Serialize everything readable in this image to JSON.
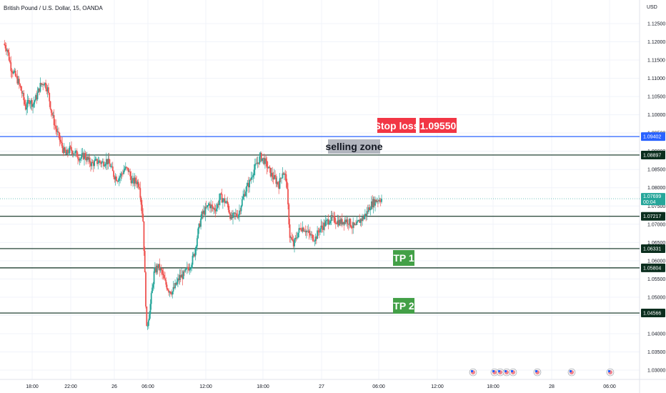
{
  "chart_data": {
    "type": "candlestick",
    "title": "British Pound / U.S. Dollar, 15, OANDA",
    "currency": "USD",
    "y_ticks": [
      "1.12500",
      "1.12000",
      "1.11500",
      "1.11000",
      "1.10500",
      "1.10000",
      "1.09500",
      "1.09000",
      "1.08500",
      "1.08000",
      "1.07500",
      "1.07000",
      "1.06500",
      "1.06000",
      "1.05500",
      "1.05000",
      "1.04500",
      "1.04000",
      "1.03500",
      "1.03000"
    ],
    "y_tick_values": [
      1.125,
      1.12,
      1.115,
      1.11,
      1.105,
      1.1,
      1.095,
      1.09,
      1.085,
      1.08,
      1.075,
      1.07,
      1.065,
      1.06,
      1.055,
      1.05,
      1.045,
      1.04,
      1.035,
      1.03
    ],
    "x_ticks": [
      "18:00",
      "22:00",
      "26",
      "06:00",
      "12:00",
      "18:00",
      "27",
      "06:00",
      "12:00",
      "18:00",
      "28",
      "06:00"
    ],
    "horizontal_levels": [
      {
        "value": 1.09402,
        "label": "1.09402",
        "color": "#2962ff"
      },
      {
        "value": 1.08897,
        "label": "1.08897",
        "color": "#0b2e1e"
      },
      {
        "value": 1.07217,
        "label": "1.07217",
        "color": "#0b2e1e"
      },
      {
        "value": 1.06331,
        "label": "1.06331",
        "color": "#0b2e1e"
      },
      {
        "value": 1.05804,
        "label": "1.05804",
        "color": "#0b2e1e"
      },
      {
        "value": 1.04566,
        "label": "1.04566",
        "color": "#0b2e1e"
      }
    ],
    "current_price": {
      "value": 1.07699,
      "label": "1.07699",
      "countdown": "00:04",
      "color": "#26a69a"
    },
    "annotations": [
      {
        "text": "Stop loss",
        "color": "#f23645"
      },
      {
        "text": "1.09550",
        "color": "#f23645"
      },
      {
        "text": "selling zone",
        "color": "#b2b5be"
      },
      {
        "text": "TP 1",
        "color": "#43a047"
      },
      {
        "text": "TP 2",
        "color": "#43a047"
      }
    ],
    "close_path": [
      1.1195,
      1.118,
      1.113,
      1.111,
      1.109,
      1.106,
      1.102,
      1.104,
      1.103,
      1.105,
      1.108,
      1.109,
      1.107,
      1.101,
      1.097,
      1.094,
      1.091,
      1.089,
      1.0905,
      1.09,
      1.089,
      1.088,
      1.089,
      1.0875,
      1.0865,
      1.087,
      1.0872,
      1.0868,
      1.0875,
      1.0862,
      1.0835,
      1.0825,
      1.0835,
      1.0852,
      1.0848,
      1.0815,
      1.082,
      1.0808,
      1.071,
      1.041,
      1.048,
      1.0565,
      1.0585,
      1.057,
      1.054,
      1.052,
      1.0515,
      1.0535,
      1.0555,
      1.056,
      1.0575,
      1.059,
      1.062,
      1.068,
      1.0725,
      1.0738,
      1.0755,
      1.0742,
      1.0745,
      1.0775,
      1.0765,
      1.0755,
      1.0715,
      1.0725,
      1.0728,
      1.0765,
      1.0795,
      1.0815,
      1.0845,
      1.0865,
      1.0885,
      1.0875,
      1.0855,
      1.0835,
      1.0822,
      1.0808,
      1.0845,
      1.0825,
      1.0668,
      1.0642,
      1.0672,
      1.0692,
      1.0688,
      1.0675,
      1.0665,
      1.0662,
      1.0685,
      1.0695,
      1.0705,
      1.0715,
      1.0712,
      1.0708,
      1.0705,
      1.0712,
      1.0708,
      1.0695,
      1.0692,
      1.071,
      1.0718,
      1.0732,
      1.0752,
      1.0762,
      1.0768,
      1.077
    ]
  }
}
